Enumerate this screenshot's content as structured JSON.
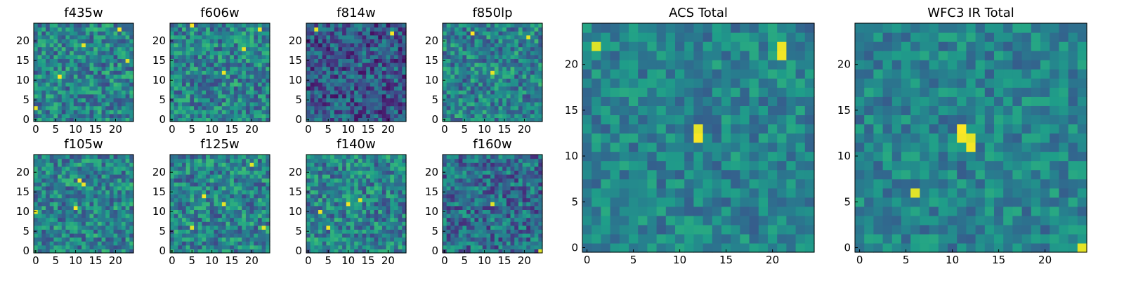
{
  "figure": {
    "colormap": "viridis",
    "background": "#ffffff"
  },
  "chart_data": [
    {
      "type": "heatmap",
      "title": "f435w",
      "size": 25,
      "xticks": [
        "0",
        "5",
        "10",
        "15",
        "20"
      ],
      "yticks": [
        "0",
        "5",
        "10",
        "15",
        "20"
      ],
      "bright_spots": [
        [
          6,
          11
        ],
        [
          12,
          19
        ],
        [
          21,
          23
        ],
        [
          23,
          15
        ],
        [
          0,
          3
        ]
      ]
    },
    {
      "type": "heatmap",
      "title": "f606w",
      "size": 25,
      "xticks": [
        "0",
        "5",
        "10",
        "15",
        "20"
      ],
      "yticks": [
        "0",
        "5",
        "10",
        "15",
        "20"
      ],
      "bright_spots": [
        [
          13,
          12
        ],
        [
          5,
          24
        ],
        [
          22,
          23
        ],
        [
          18,
          18
        ]
      ]
    },
    {
      "type": "heatmap",
      "title": "f814w",
      "size": 25,
      "xticks": [
        "0",
        "5",
        "10",
        "15",
        "20"
      ],
      "yticks": [
        "0",
        "5",
        "10",
        "15",
        "20"
      ],
      "bright_spots": [
        [
          21,
          22
        ],
        [
          2,
          23
        ]
      ]
    },
    {
      "type": "heatmap",
      "title": "f850lp",
      "size": 25,
      "xticks": [
        "0",
        "5",
        "10",
        "15",
        "20"
      ],
      "yticks": [
        "0",
        "5",
        "10",
        "15",
        "20"
      ],
      "bright_spots": [
        [
          21,
          21
        ],
        [
          7,
          22
        ],
        [
          12,
          12
        ]
      ]
    },
    {
      "type": "heatmap",
      "title": "f105w",
      "size": 25,
      "xticks": [
        "0",
        "5",
        "10",
        "15",
        "20"
      ],
      "yticks": [
        "0",
        "5",
        "10",
        "15",
        "20"
      ],
      "bright_spots": [
        [
          11,
          18
        ],
        [
          12,
          17
        ],
        [
          0,
          10
        ],
        [
          10,
          11
        ]
      ]
    },
    {
      "type": "heatmap",
      "title": "f125w",
      "size": 25,
      "xticks": [
        "0",
        "5",
        "10",
        "15",
        "20"
      ],
      "yticks": [
        "0",
        "5",
        "10",
        "15",
        "20"
      ],
      "bright_spots": [
        [
          13,
          12
        ],
        [
          5,
          6
        ],
        [
          20,
          22
        ],
        [
          23,
          6
        ],
        [
          8,
          14
        ]
      ]
    },
    {
      "type": "heatmap",
      "title": "f140w",
      "size": 25,
      "xticks": [
        "0",
        "5",
        "10",
        "15",
        "20"
      ],
      "yticks": [
        "0",
        "5",
        "10",
        "15",
        "20"
      ],
      "bright_spots": [
        [
          5,
          6
        ],
        [
          10,
          12
        ],
        [
          13,
          13
        ],
        [
          3,
          10
        ]
      ]
    },
    {
      "type": "heatmap",
      "title": "f160w",
      "size": 25,
      "xticks": [
        "0",
        "5",
        "10",
        "15",
        "20"
      ],
      "yticks": [
        "0",
        "5",
        "10",
        "15",
        "20"
      ],
      "bright_spots": [
        [
          24,
          0
        ],
        [
          12,
          12
        ]
      ]
    },
    {
      "type": "heatmap",
      "title": "ACS Total",
      "size": 25,
      "xticks": [
        "0",
        "5",
        "10",
        "15",
        "20"
      ],
      "yticks": [
        "0",
        "5",
        "10",
        "15",
        "20"
      ],
      "bright_spots": [
        [
          21,
          22
        ],
        [
          21,
          21
        ],
        [
          12,
          12
        ],
        [
          12,
          13
        ],
        [
          1,
          22
        ]
      ]
    },
    {
      "type": "heatmap",
      "title": "WFC3 IR Total",
      "size": 25,
      "xticks": [
        "0",
        "5",
        "10",
        "15",
        "20"
      ],
      "yticks": [
        "0",
        "5",
        "10",
        "15",
        "20"
      ],
      "bright_spots": [
        [
          11,
          13
        ],
        [
          12,
          12
        ],
        [
          12,
          11
        ],
        [
          11,
          12
        ],
        [
          6,
          6
        ],
        [
          24,
          0
        ]
      ]
    }
  ]
}
